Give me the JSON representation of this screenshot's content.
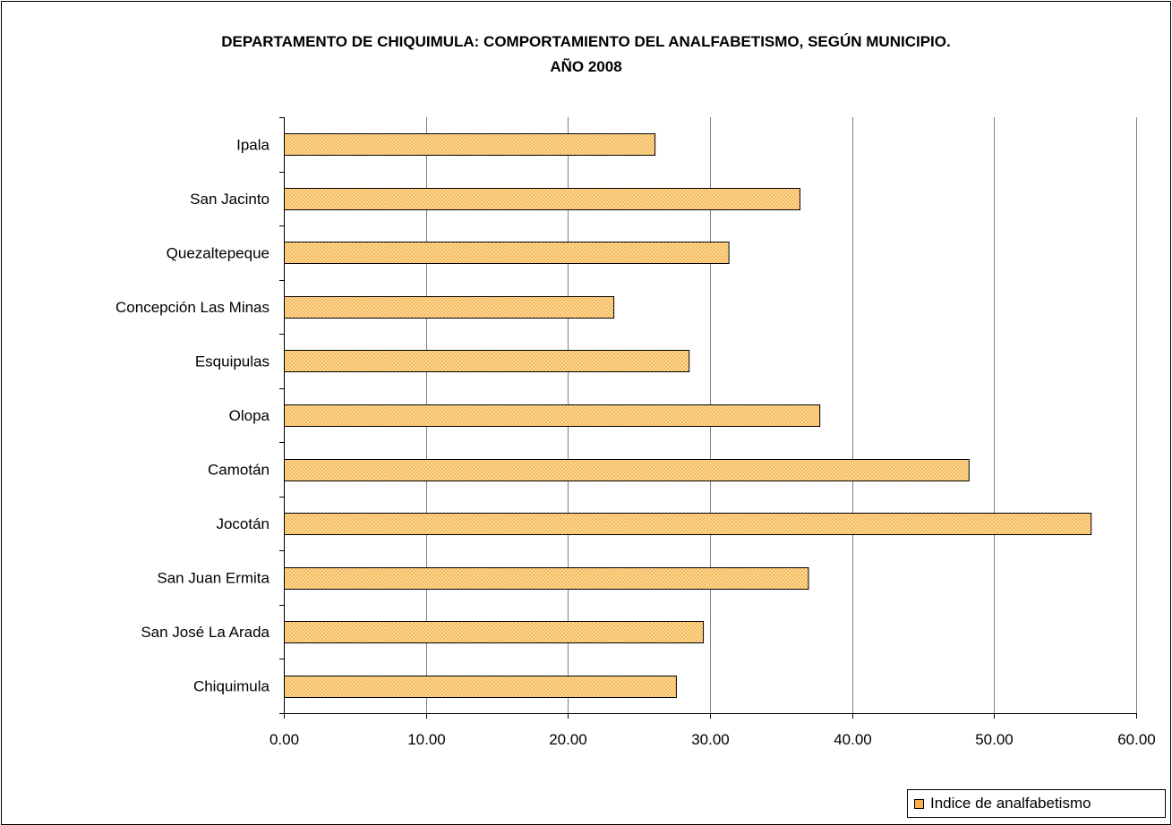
{
  "title_line1": "DEPARTAMENTO DE CHIQUIMULA: COMPORTAMIENTO DEL ANALFABETISMO, SEGÚN MUNICIPIO.",
  "title_line2": "AÑO 2008",
  "colors": {
    "bar_fill": "#f5b04c",
    "bar_pattern": "#fde2a8",
    "bar_border": "#000000",
    "grid": "#808080"
  },
  "chart_data": {
    "type": "bar",
    "orientation": "horizontal",
    "title": "DEPARTAMENTO DE CHIQUIMULA: COMPORTAMIENTO DEL ANALFABETISMO, SEGÚN MUNICIPIO. AÑO 2008",
    "categories": [
      "Ipala",
      "San Jacinto",
      "Quezaltepeque",
      "Concepción Las Minas",
      "Esquipulas",
      "Olopa",
      "Camotán",
      "Jocotán",
      "San Juan Ermita",
      "San José La Arada",
      "Chiquimula"
    ],
    "series": [
      {
        "name": "Indice de analfabetismo",
        "values": [
          26.1,
          36.3,
          31.3,
          23.2,
          28.5,
          37.7,
          48.2,
          56.8,
          36.9,
          29.5,
          27.6
        ]
      }
    ],
    "xlim": [
      0,
      60
    ],
    "ticks": [
      "0.00",
      "10.00",
      "20.00",
      "30.00",
      "40.00",
      "50.00",
      "60.00"
    ],
    "tick_values": [
      0,
      10,
      20,
      30,
      40,
      50,
      60
    ],
    "grid": "vertical",
    "legend": "bottom-right"
  }
}
